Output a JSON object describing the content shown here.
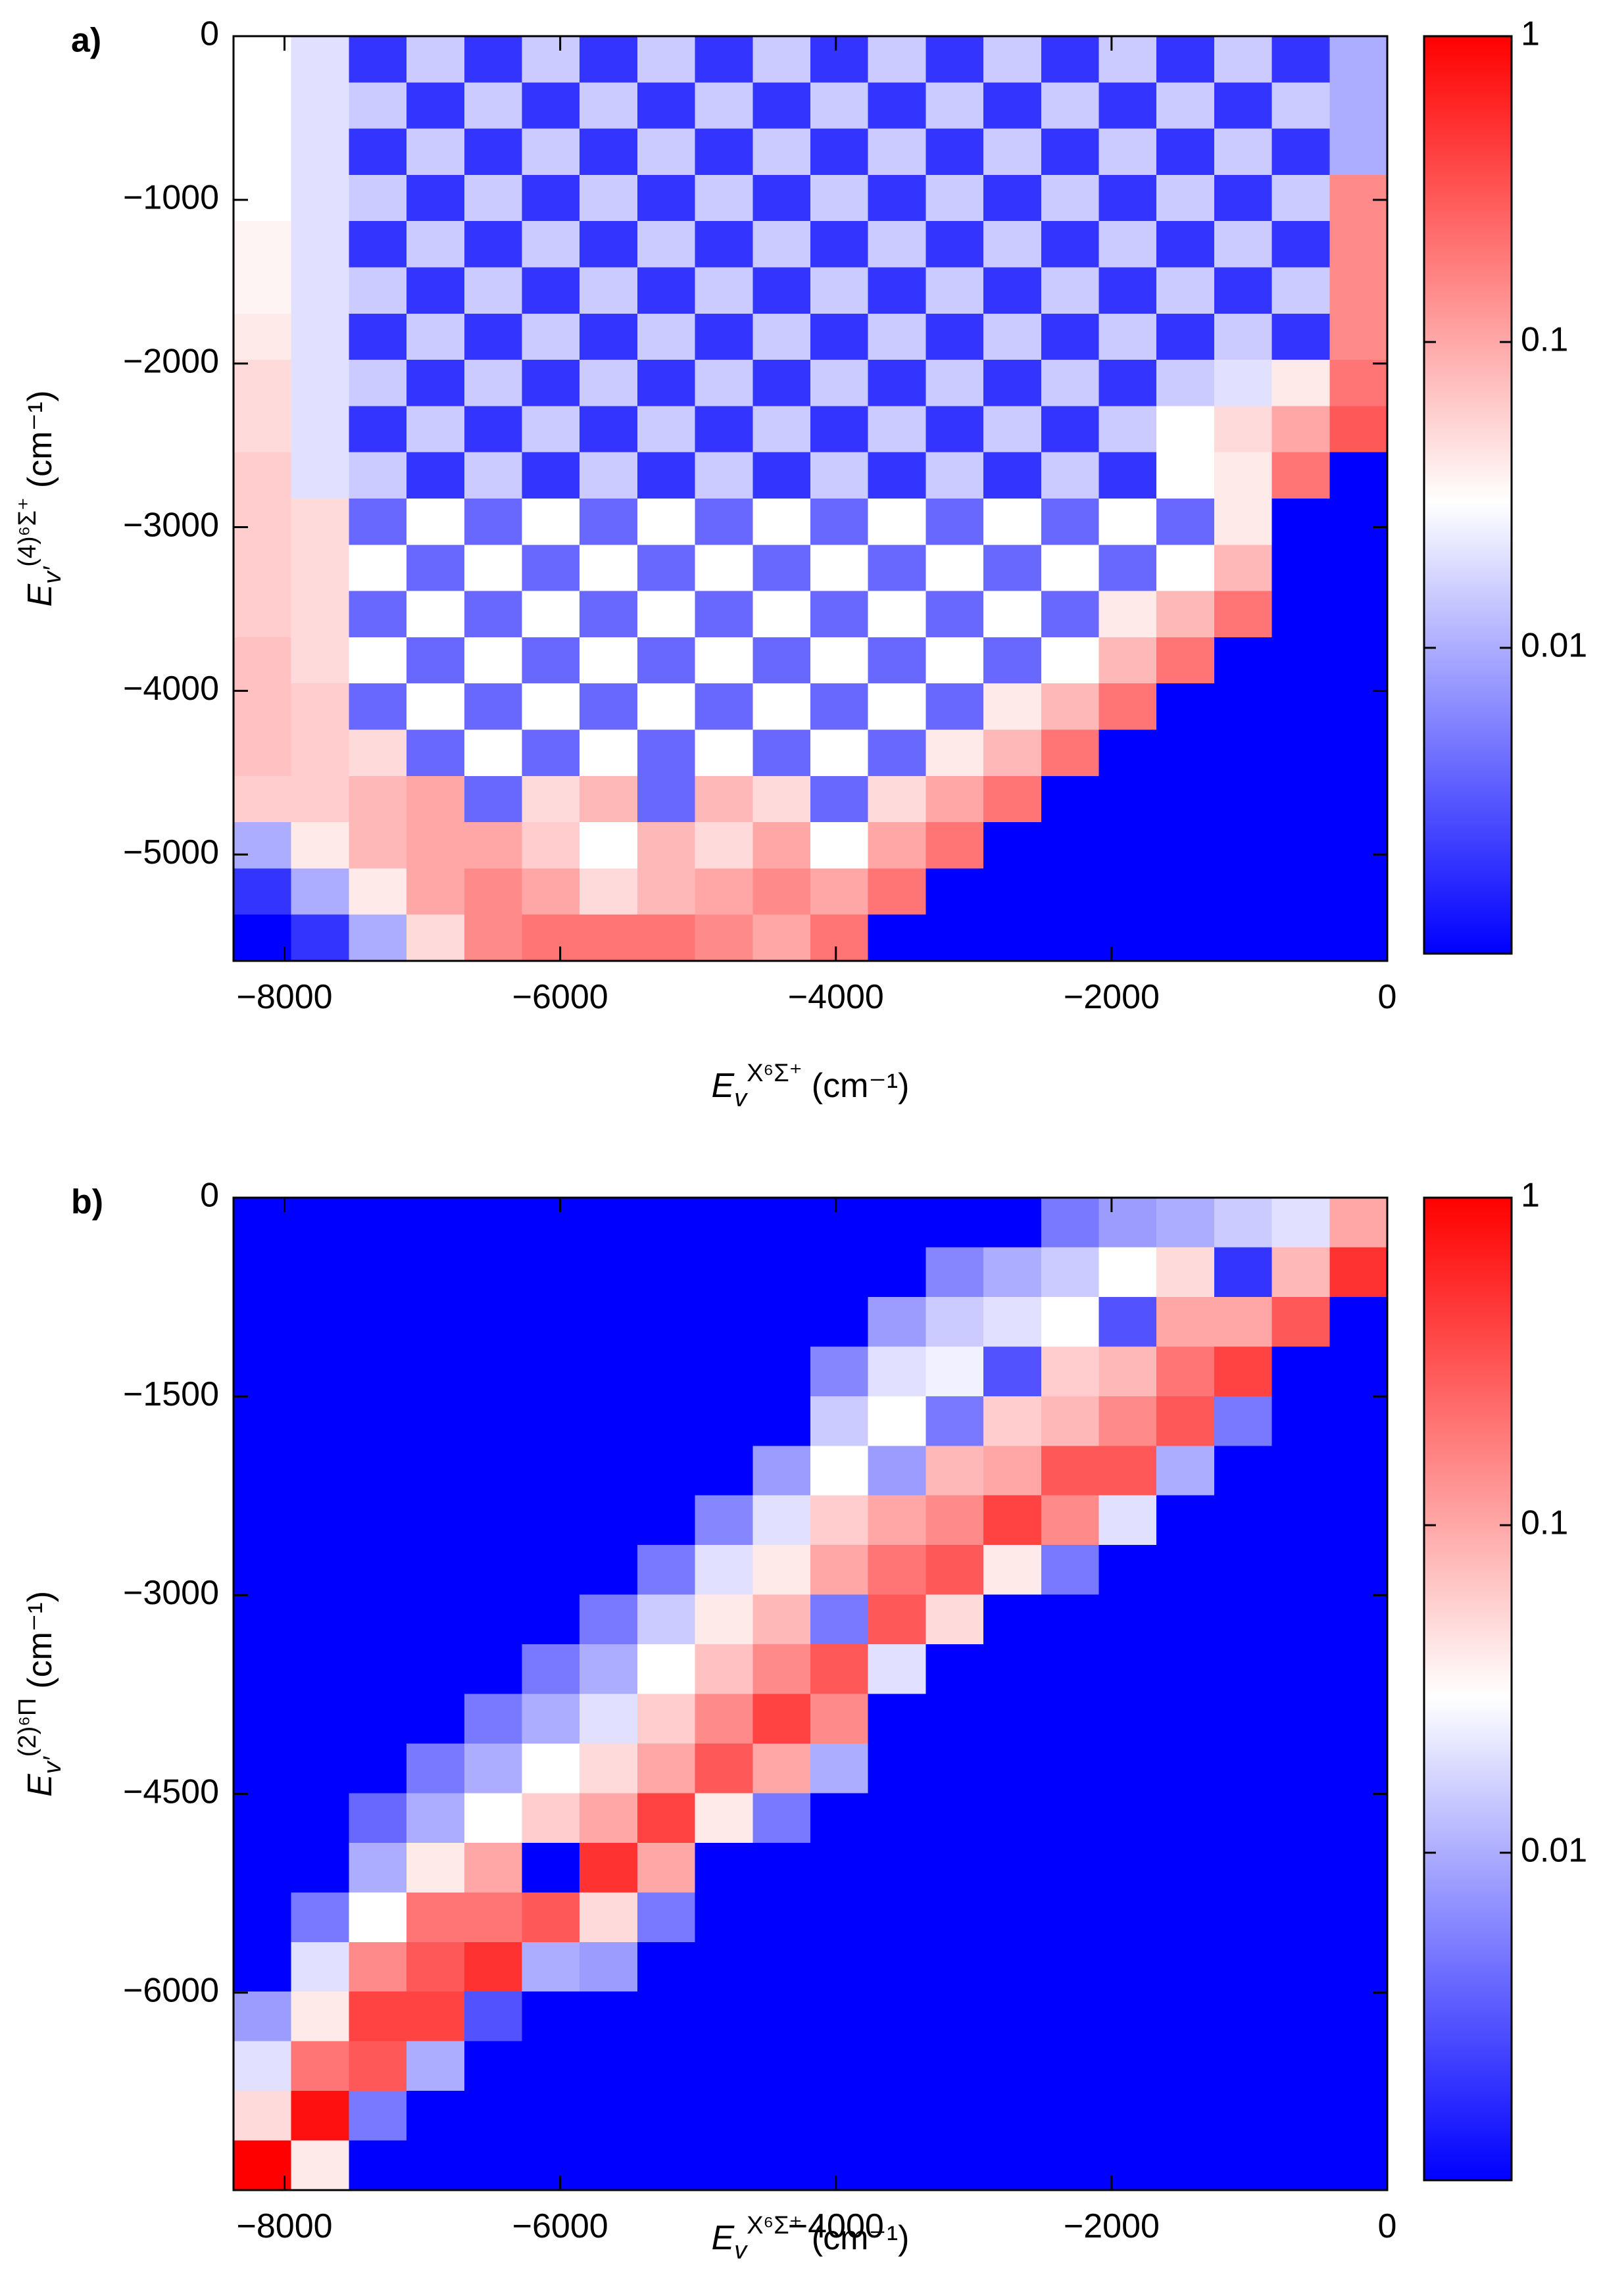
{
  "chart_data": [
    {
      "type": "heatmap",
      "panel_label": "a)",
      "x_label": {
        "symbol": "E",
        "sub": "v",
        "sup": "X⁶Σ⁺",
        "unit": "(cm⁻¹)"
      },
      "y_label": {
        "symbol": "E",
        "sub": "v′",
        "sup": "(4)⁶Σ⁺",
        "unit": "(cm⁻¹)"
      },
      "xlim": [
        -8370,
        0
      ],
      "ylim": [
        -5650,
        0
      ],
      "xticks": [
        {
          "value": -8000,
          "label": "−8000"
        },
        {
          "value": -6000,
          "label": "−6000"
        },
        {
          "value": -4000,
          "label": "−4000"
        },
        {
          "value": -2000,
          "label": "−2000"
        },
        0
      ],
      "yticks": [
        0,
        {
          "value": -1000,
          "label": "−1000"
        },
        {
          "value": -2000,
          "label": "−2000"
        },
        {
          "value": -3000,
          "label": "−3000"
        },
        {
          "value": -4000,
          "label": "−4000"
        },
        {
          "value": -5000,
          "label": "−5000"
        }
      ],
      "x": [
        -8161,
        -7742,
        -7324,
        -6905,
        -6487,
        -6068,
        -5650,
        -5231,
        -4813,
        -4394,
        -3976,
        -3557,
        -3139,
        -2720,
        -2302,
        -1883,
        -1465,
        -1046,
        -628,
        -209
      ],
      "y": [
        -141,
        -424,
        -706,
        -989,
        -1271,
        -1554,
        -1836,
        -2119,
        -2401,
        -2684,
        -2966,
        -3249,
        -3531,
        -3814,
        -4096,
        -4379,
        -4661,
        -4944,
        -5226,
        -5509
      ],
      "z": [
        [
          0.03,
          0.02,
          0.002,
          0.015,
          0.002,
          0.015,
          0.002,
          0.015,
          0.002,
          0.015,
          0.002,
          0.015,
          0.002,
          0.015,
          0.002,
          0.015,
          0.002,
          0.015,
          0.002,
          0.01
        ],
        [
          0.03,
          0.02,
          0.015,
          0.002,
          0.015,
          0.002,
          0.015,
          0.002,
          0.015,
          0.002,
          0.015,
          0.002,
          0.015,
          0.002,
          0.015,
          0.002,
          0.015,
          0.002,
          0.015,
          0.01
        ],
        [
          0.03,
          0.02,
          0.002,
          0.015,
          0.002,
          0.015,
          0.002,
          0.015,
          0.002,
          0.015,
          0.002,
          0.015,
          0.002,
          0.015,
          0.002,
          0.015,
          0.002,
          0.015,
          0.002,
          0.01
        ],
        [
          0.03,
          0.02,
          0.015,
          0.002,
          0.015,
          0.002,
          0.015,
          0.002,
          0.015,
          0.002,
          0.015,
          0.002,
          0.015,
          0.002,
          0.015,
          0.002,
          0.015,
          0.002,
          0.015,
          0.15
        ],
        [
          0.035,
          0.02,
          0.002,
          0.015,
          0.002,
          0.015,
          0.002,
          0.015,
          0.002,
          0.015,
          0.002,
          0.015,
          0.002,
          0.015,
          0.002,
          0.015,
          0.002,
          0.015,
          0.002,
          0.15
        ],
        [
          0.035,
          0.02,
          0.015,
          0.002,
          0.015,
          0.002,
          0.015,
          0.002,
          0.015,
          0.002,
          0.015,
          0.002,
          0.015,
          0.002,
          0.015,
          0.002,
          0.015,
          0.002,
          0.015,
          0.15
        ],
        [
          0.04,
          0.02,
          0.002,
          0.015,
          0.002,
          0.015,
          0.002,
          0.015,
          0.002,
          0.015,
          0.002,
          0.015,
          0.002,
          0.015,
          0.002,
          0.015,
          0.002,
          0.015,
          0.002,
          0.15
        ],
        [
          0.05,
          0.02,
          0.015,
          0.002,
          0.015,
          0.002,
          0.015,
          0.002,
          0.015,
          0.002,
          0.015,
          0.002,
          0.015,
          0.002,
          0.015,
          0.002,
          0.015,
          0.02,
          0.04,
          0.2
        ],
        [
          0.05,
          0.02,
          0.002,
          0.015,
          0.002,
          0.015,
          0.002,
          0.015,
          0.002,
          0.015,
          0.002,
          0.015,
          0.002,
          0.015,
          0.002,
          0.015,
          0.03,
          0.05,
          0.1,
          0.3
        ],
        [
          0.06,
          0.02,
          0.015,
          0.002,
          0.015,
          0.002,
          0.015,
          0.002,
          0.015,
          0.002,
          0.015,
          0.002,
          0.015,
          0.002,
          0.015,
          0.002,
          0.03,
          0.04,
          0.2,
          0.001
        ],
        [
          0.06,
          0.05,
          0.004,
          0.03,
          0.004,
          0.03,
          0.004,
          0.03,
          0.004,
          0.03,
          0.004,
          0.03,
          0.004,
          0.03,
          0.004,
          0.03,
          0.004,
          0.04,
          0.001,
          0.001
        ],
        [
          0.06,
          0.05,
          0.03,
          0.004,
          0.03,
          0.004,
          0.03,
          0.004,
          0.03,
          0.004,
          0.03,
          0.004,
          0.03,
          0.004,
          0.03,
          0.004,
          0.03,
          0.08,
          0.001,
          0.001
        ],
        [
          0.06,
          0.05,
          0.004,
          0.03,
          0.004,
          0.03,
          0.004,
          0.03,
          0.004,
          0.03,
          0.004,
          0.03,
          0.004,
          0.03,
          0.004,
          0.04,
          0.08,
          0.2,
          0.001,
          0.001
        ],
        [
          0.07,
          0.05,
          0.03,
          0.004,
          0.03,
          0.004,
          0.03,
          0.004,
          0.03,
          0.004,
          0.03,
          0.004,
          0.03,
          0.004,
          0.03,
          0.08,
          0.2,
          0.001,
          0.001,
          0.001
        ],
        [
          0.07,
          0.06,
          0.004,
          0.03,
          0.004,
          0.03,
          0.004,
          0.03,
          0.004,
          0.03,
          0.004,
          0.03,
          0.004,
          0.04,
          0.08,
          0.2,
          0.001,
          0.001,
          0.001,
          0.001
        ],
        [
          0.07,
          0.06,
          0.05,
          0.004,
          0.03,
          0.004,
          0.03,
          0.004,
          0.03,
          0.004,
          0.03,
          0.004,
          0.04,
          0.08,
          0.2,
          0.001,
          0.001,
          0.001,
          0.001,
          0.001
        ],
        [
          0.06,
          0.06,
          0.08,
          0.1,
          0.004,
          0.05,
          0.08,
          0.004,
          0.08,
          0.05,
          0.004,
          0.05,
          0.1,
          0.2,
          0.001,
          0.001,
          0.001,
          0.001,
          0.001,
          0.001
        ],
        [
          0.01,
          0.04,
          0.08,
          0.1,
          0.1,
          0.06,
          0.03,
          0.08,
          0.05,
          0.1,
          0.03,
          0.1,
          0.2,
          0.001,
          0.001,
          0.001,
          0.001,
          0.001,
          0.001,
          0.001
        ],
        [
          0.002,
          0.01,
          0.04,
          0.1,
          0.15,
          0.1,
          0.05,
          0.08,
          0.1,
          0.15,
          0.1,
          0.2,
          0.001,
          0.001,
          0.001,
          0.001,
          0.001,
          0.001,
          0.001,
          0.001
        ],
        [
          0.001,
          0.002,
          0.01,
          0.05,
          0.15,
          0.2,
          0.2,
          0.2,
          0.15,
          0.1,
          0.2,
          0.001,
          0.001,
          0.001,
          0.001,
          0.001,
          0.001,
          0.001,
          0.001,
          0.001
        ]
      ],
      "colorbar": {
        "scale": "log",
        "range": [
          0.001,
          1
        ],
        "ticks": [
          1,
          0.1,
          0.01
        ],
        "colors": [
          "#0000ff",
          "#ffffff",
          "#ff0000"
        ],
        "center": 0.03
      }
    },
    {
      "type": "heatmap",
      "panel_label": "b)",
      "x_label": {
        "symbol": "E",
        "sub": "v",
        "sup": "X⁶Σ⁺",
        "unit": "(cm⁻¹)"
      },
      "y_label": {
        "symbol": "E",
        "sub": "v′",
        "sup": "(2)⁶Π",
        "unit": "(cm⁻¹)"
      },
      "xlim": [
        -8370,
        0
      ],
      "ylim": [
        -7490,
        0
      ],
      "xticks": [
        {
          "value": -8000,
          "label": "−8000"
        },
        {
          "value": -6000,
          "label": "−6000"
        },
        {
          "value": -4000,
          "label": "−4000"
        },
        {
          "value": -2000,
          "label": "−2000"
        },
        0
      ],
      "yticks": [
        0,
        {
          "value": -1500,
          "label": "−1500"
        },
        {
          "value": -3000,
          "label": "−3000"
        },
        {
          "value": -4500,
          "label": "−4500"
        },
        {
          "value": -6000,
          "label": "−6000"
        }
      ],
      "x": [
        -8161,
        -7742,
        -7324,
        -6905,
        -6487,
        -6068,
        -5650,
        -5231,
        -4813,
        -4394,
        -3976,
        -3557,
        -3139,
        -2720,
        -2302,
        -1883,
        -1465,
        -1046,
        -628,
        -209
      ],
      "y": [
        -187,
        -562,
        -936,
        -1311,
        -1685,
        -2060,
        -2434,
        -2809,
        -3183,
        -3558,
        -3932,
        -4307,
        -4681,
        -5056,
        -5430,
        -5805,
        -6179,
        -6554,
        -6928,
        -7303
      ],
      "z": [
        [
          0.001,
          0.001,
          0.001,
          0.001,
          0.001,
          0.001,
          0.001,
          0.001,
          0.001,
          0.001,
          0.001,
          0.001,
          0.001,
          0.001,
          0.005,
          0.008,
          0.01,
          0.015,
          0.02,
          0.1
        ],
        [
          0.001,
          0.001,
          0.001,
          0.001,
          0.001,
          0.001,
          0.001,
          0.001,
          0.001,
          0.001,
          0.001,
          0.001,
          0.006,
          0.01,
          0.015,
          0.03,
          0.05,
          0.002,
          0.08,
          0.5
        ],
        [
          0.001,
          0.001,
          0.001,
          0.001,
          0.001,
          0.001,
          0.001,
          0.001,
          0.001,
          0.001,
          0.001,
          0.008,
          0.015,
          0.02,
          0.03,
          0.003,
          0.1,
          0.1,
          0.3,
          0.001
        ],
        [
          0.001,
          0.001,
          0.001,
          0.001,
          0.001,
          0.001,
          0.001,
          0.001,
          0.001,
          0.001,
          0.006,
          0.02,
          0.025,
          0.003,
          0.06,
          0.08,
          0.2,
          0.4,
          0.001,
          0.001
        ],
        [
          0.001,
          0.001,
          0.001,
          0.001,
          0.001,
          0.001,
          0.001,
          0.001,
          0.001,
          0.001,
          0.015,
          0.03,
          0.005,
          0.06,
          0.08,
          0.15,
          0.3,
          0.005,
          0.001,
          0.001
        ],
        [
          0.001,
          0.001,
          0.001,
          0.001,
          0.001,
          0.001,
          0.001,
          0.001,
          0.001,
          0.008,
          0.03,
          0.008,
          0.08,
          0.1,
          0.3,
          0.3,
          0.01,
          0.001,
          0.001,
          0.001
        ],
        [
          0.001,
          0.001,
          0.001,
          0.001,
          0.001,
          0.001,
          0.001,
          0.001,
          0.006,
          0.02,
          0.06,
          0.1,
          0.15,
          0.4,
          0.15,
          0.02,
          0.001,
          0.001,
          0.001,
          0.001
        ],
        [
          0.001,
          0.001,
          0.001,
          0.001,
          0.001,
          0.001,
          0.001,
          0.005,
          0.02,
          0.04,
          0.1,
          0.2,
          0.3,
          0.04,
          0.005,
          0.001,
          0.001,
          0.001,
          0.001,
          0.001
        ],
        [
          0.001,
          0.001,
          0.001,
          0.001,
          0.001,
          0.001,
          0.005,
          0.015,
          0.04,
          0.08,
          0.005,
          0.3,
          0.05,
          0.001,
          0.001,
          0.001,
          0.001,
          0.001,
          0.001,
          0.001
        ],
        [
          0.001,
          0.001,
          0.001,
          0.001,
          0.001,
          0.005,
          0.01,
          0.03,
          0.07,
          0.15,
          0.3,
          0.02,
          0.001,
          0.001,
          0.001,
          0.001,
          0.001,
          0.001,
          0.001,
          0.001
        ],
        [
          0.001,
          0.001,
          0.001,
          0.001,
          0.005,
          0.01,
          0.02,
          0.06,
          0.15,
          0.4,
          0.15,
          0.001,
          0.001,
          0.001,
          0.001,
          0.001,
          0.001,
          0.001,
          0.001,
          0.001
        ],
        [
          0.001,
          0.001,
          0.001,
          0.005,
          0.01,
          0.03,
          0.05,
          0.1,
          0.3,
          0.1,
          0.01,
          0.001,
          0.001,
          0.001,
          0.001,
          0.001,
          0.001,
          0.001,
          0.001,
          0.001
        ],
        [
          0.001,
          0.001,
          0.004,
          0.01,
          0.03,
          0.06,
          0.1,
          0.4,
          0.04,
          0.005,
          0.001,
          0.001,
          0.001,
          0.001,
          0.001,
          0.001,
          0.001,
          0.001,
          0.001,
          0.001
        ],
        [
          0.001,
          0.001,
          0.01,
          0.04,
          0.1,
          0.001,
          0.5,
          0.1,
          0.001,
          0.001,
          0.001,
          0.001,
          0.001,
          0.001,
          0.001,
          0.001,
          0.001,
          0.001,
          0.001,
          0.001
        ],
        [
          0.001,
          0.005,
          0.03,
          0.2,
          0.2,
          0.3,
          0.05,
          0.005,
          0.001,
          0.001,
          0.001,
          0.001,
          0.001,
          0.001,
          0.001,
          0.001,
          0.001,
          0.001,
          0.001,
          0.001
        ],
        [
          0.001,
          0.02,
          0.15,
          0.3,
          0.5,
          0.01,
          0.008,
          0.001,
          0.001,
          0.001,
          0.001,
          0.001,
          0.001,
          0.001,
          0.001,
          0.001,
          0.001,
          0.001,
          0.001,
          0.001
        ],
        [
          0.008,
          0.04,
          0.4,
          0.4,
          0.003,
          0.001,
          0.001,
          0.001,
          0.001,
          0.001,
          0.001,
          0.001,
          0.001,
          0.001,
          0.001,
          0.001,
          0.001,
          0.001,
          0.001,
          0.001
        ],
        [
          0.02,
          0.2,
          0.3,
          0.01,
          0.001,
          0.001,
          0.001,
          0.001,
          0.001,
          0.001,
          0.001,
          0.001,
          0.001,
          0.001,
          0.001,
          0.001,
          0.001,
          0.001,
          0.001,
          0.001
        ],
        [
          0.05,
          0.8,
          0.005,
          0.001,
          0.001,
          0.001,
          0.001,
          0.001,
          0.001,
          0.001,
          0.001,
          0.001,
          0.001,
          0.001,
          0.001,
          0.001,
          0.001,
          0.001,
          0.001,
          0.001
        ],
        [
          1,
          0.04,
          0.001,
          0.001,
          0.001,
          0.001,
          0.001,
          0.001,
          0.001,
          0.001,
          0.001,
          0.001,
          0.001,
          0.001,
          0.001,
          0.001,
          0.001,
          0.001,
          0.001,
          0.001
        ]
      ],
      "colorbar": {
        "scale": "log",
        "range": [
          0.001,
          1
        ],
        "ticks": [
          1,
          0.1,
          0.01
        ],
        "colors": [
          "#0000ff",
          "#ffffff",
          "#ff0000"
        ],
        "center": 0.03
      }
    }
  ]
}
